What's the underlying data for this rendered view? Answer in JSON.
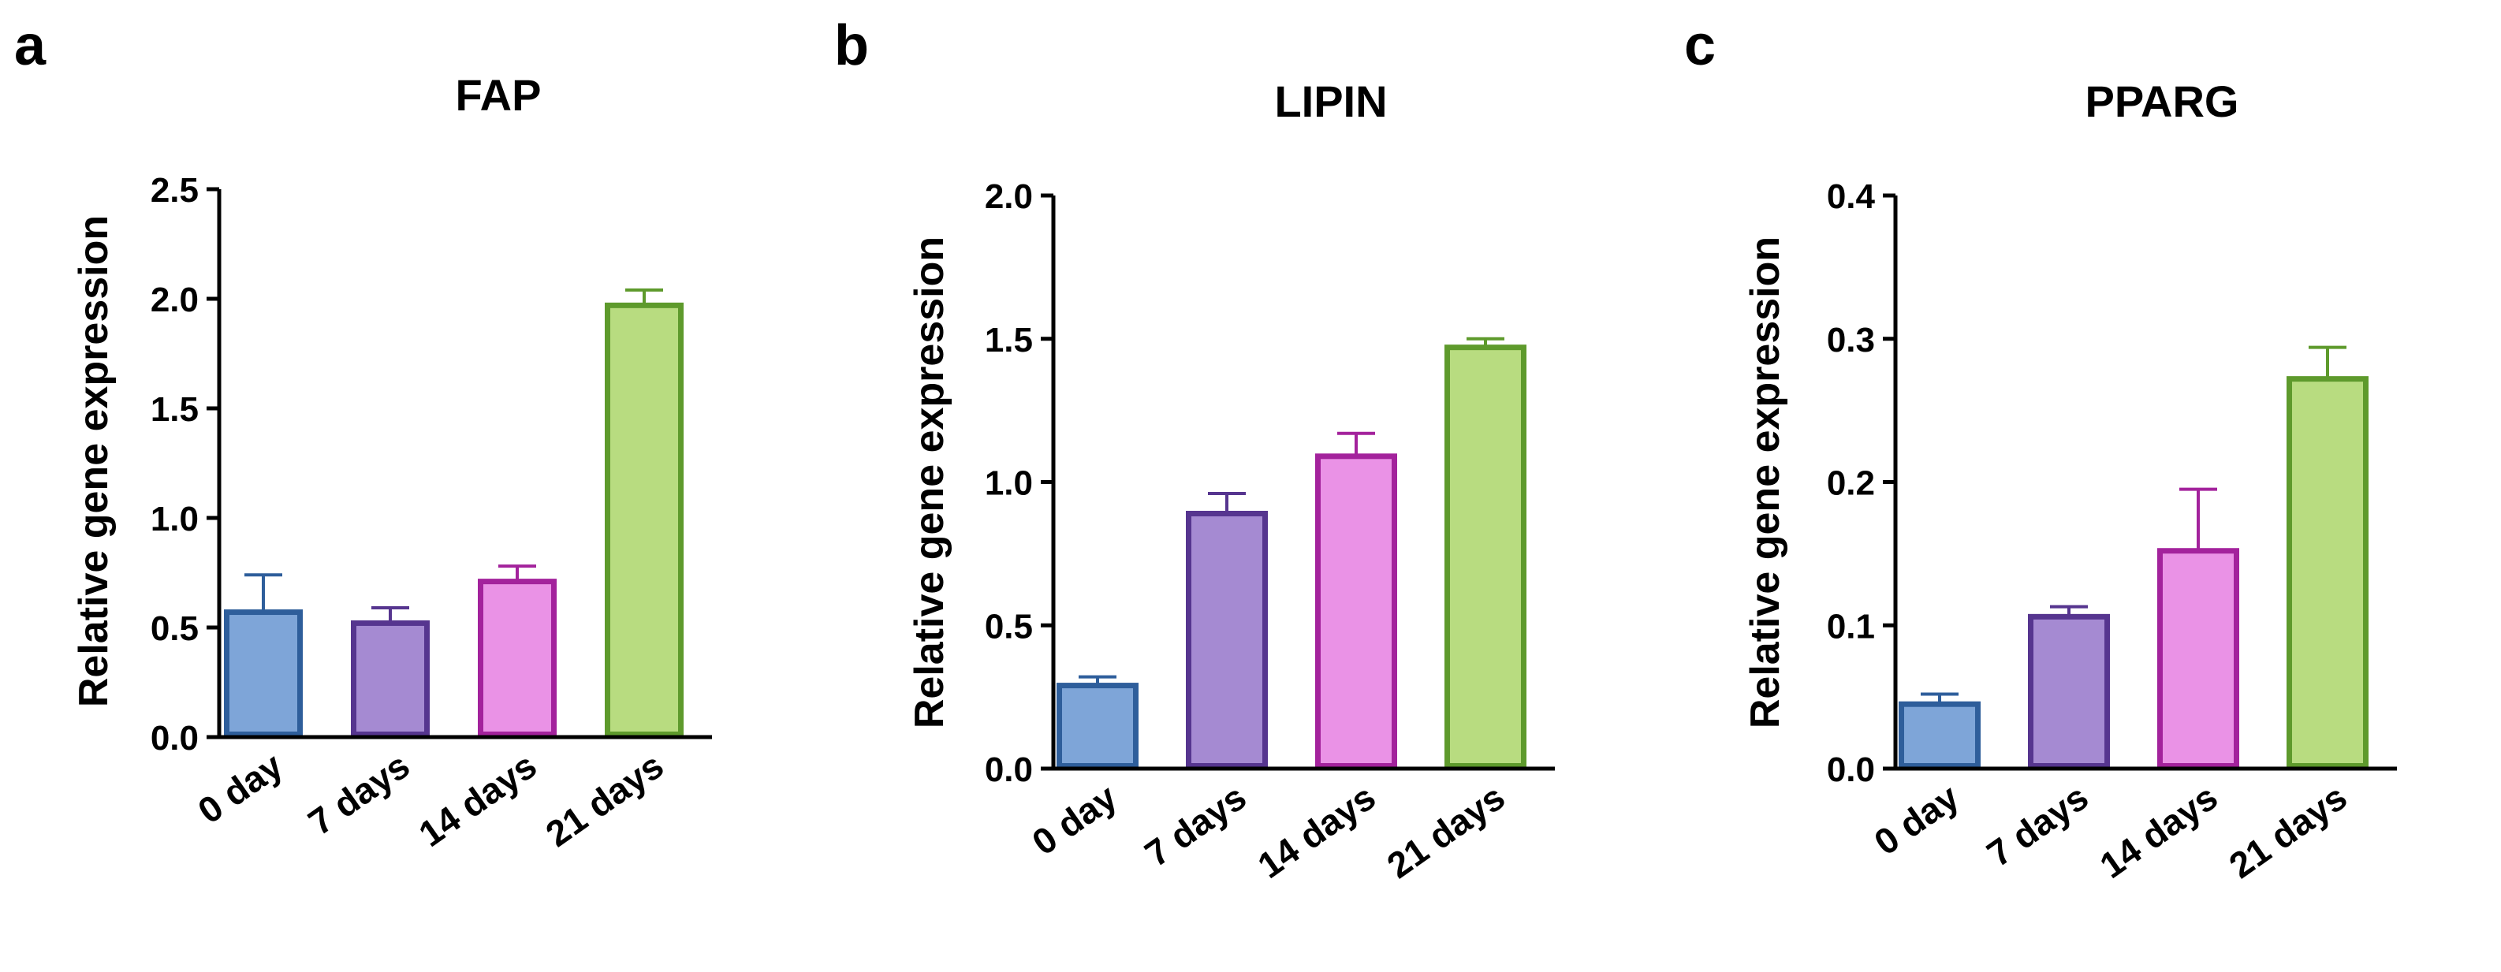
{
  "chart_data": [
    {
      "type": "bar",
      "panel": "a",
      "title": "FAP",
      "ylabel": "Relative gene expression",
      "xlabel": "",
      "categories": [
        "0 day",
        "7 days",
        "14 days",
        "21 days"
      ],
      "values": [
        0.57,
        0.52,
        0.71,
        1.97
      ],
      "errors": [
        0.17,
        0.07,
        0.07,
        0.07
      ],
      "ylim": [
        0,
        2.5
      ],
      "yticks": [
        "0.0",
        "0.5",
        "1.0",
        "1.5",
        "2.0",
        "2.5"
      ],
      "bar_colors": [
        {
          "fill": "#7ea5d8",
          "stroke": "#2e5e9b"
        },
        {
          "fill": "#a58ad2",
          "stroke": "#56358f"
        },
        {
          "fill": "#ea92e6",
          "stroke": "#a3229c"
        },
        {
          "fill": "#b8dc80",
          "stroke": "#5e9a2c"
        }
      ]
    },
    {
      "type": "bar",
      "panel": "b",
      "title": "LIPIN",
      "ylabel": "Relative gene expression",
      "xlabel": "",
      "categories": [
        "0 day",
        "7 days",
        "14 days",
        "21 days"
      ],
      "values": [
        0.29,
        0.89,
        1.09,
        1.47
      ],
      "errors": [
        0.03,
        0.07,
        0.08,
        0.03
      ],
      "ylim": [
        0,
        2.0
      ],
      "yticks": [
        "0.0",
        "0.5",
        "1.0",
        "1.5",
        "2.0"
      ],
      "bar_colors": [
        {
          "fill": "#7ea5d8",
          "stroke": "#2e5e9b"
        },
        {
          "fill": "#a58ad2",
          "stroke": "#56358f"
        },
        {
          "fill": "#ea92e6",
          "stroke": "#a3229c"
        },
        {
          "fill": "#b8dc80",
          "stroke": "#5e9a2c"
        }
      ]
    },
    {
      "type": "bar",
      "panel": "c",
      "title": "PPARG",
      "ylabel": "Relative gene expression",
      "xlabel": "",
      "categories": [
        "0 day",
        "7 days",
        "14 days",
        "21 days"
      ],
      "values": [
        0.045,
        0.106,
        0.152,
        0.272
      ],
      "errors": [
        0.007,
        0.007,
        0.043,
        0.022
      ],
      "ylim": [
        0,
        0.4
      ],
      "yticks": [
        "0.0",
        "0.1",
        "0.2",
        "0.3",
        "0.4"
      ],
      "bar_colors": [
        {
          "fill": "#7ea5d8",
          "stroke": "#2e5e9b"
        },
        {
          "fill": "#a58ad2",
          "stroke": "#56358f"
        },
        {
          "fill": "#ea92e6",
          "stroke": "#a3229c"
        },
        {
          "fill": "#b8dc80",
          "stroke": "#5e9a2c"
        }
      ]
    }
  ]
}
